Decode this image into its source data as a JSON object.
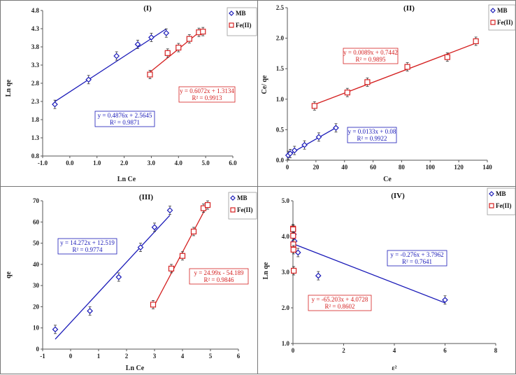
{
  "colors": {
    "mb": "#1a1ab8",
    "fe": "#d42020"
  },
  "chart_data": [
    {
      "type": "scatter",
      "title": "(I)",
      "xlabel": "Ln Ce",
      "ylabel": "Ln qe",
      "xlim": [
        -1,
        6
      ],
      "ylim": [
        0.8,
        4.8
      ],
      "xticks": [
        "-1.0",
        "0.0",
        "1.0",
        "2.0",
        "3.0",
        "4.0",
        "5.0",
        "6.0"
      ],
      "yticks": [
        "0.8",
        "1.3",
        "1.8",
        "2.3",
        "2.8",
        "3.3",
        "3.8",
        "4.3",
        "4.8"
      ],
      "legend": [
        "MB",
        "Fe(II)"
      ],
      "series": [
        {
          "name": "MB",
          "x": [
            -0.55,
            0.69,
            1.72,
            2.5,
            3.0,
            3.55
          ],
          "y": [
            2.22,
            2.9,
            3.55,
            3.87,
            4.06,
            4.18
          ],
          "fit": {
            "slope": 0.4876,
            "intercept": 2.5645,
            "range": [
              -0.55,
              3.55
            ]
          },
          "equation": "y = 0.4876x + 2.5645",
          "r2": "R² = 0.9871"
        },
        {
          "name": "Fe(II)",
          "x": [
            2.95,
            3.6,
            4.0,
            4.4,
            4.75,
            4.9
          ],
          "y": [
            3.04,
            3.63,
            3.78,
            4.02,
            4.2,
            4.22
          ],
          "fit": {
            "slope": 0.6072,
            "intercept": 1.3134,
            "range": [
              2.95,
              4.9
            ]
          },
          "equation": "y = 0.6072x + 1.3134",
          "r2": "R² = 0.9913"
        }
      ]
    },
    {
      "type": "scatter",
      "title": "(II)",
      "xlabel": "Ce",
      "ylabel": "Ce/ qe",
      "xlim": [
        0,
        140
      ],
      "ylim": [
        0,
        2.5
      ],
      "xticks": [
        "0",
        "20",
        "40",
        "60",
        "80",
        "100",
        "120",
        "140"
      ],
      "yticks": [
        "0.0",
        "0.5",
        "1.0",
        "1.5",
        "2.0",
        "2.5"
      ],
      "legend": [
        "MB",
        "Fe(II)"
      ],
      "series": [
        {
          "name": "MB",
          "x": [
            0.6,
            2,
            5,
            12,
            22,
            34
          ],
          "y": [
            0.08,
            0.11,
            0.16,
            0.25,
            0.38,
            0.53
          ],
          "fit": {
            "slope": 0.0133,
            "intercept": 0.08,
            "range": [
              0.6,
              34
            ]
          },
          "equation": "y = 0.0133x + 0.08",
          "r2": "R² = 0.9922"
        },
        {
          "name": "Fe(II)",
          "x": [
            19,
            42,
            56,
            84,
            112,
            132
          ],
          "y": [
            0.89,
            1.11,
            1.28,
            1.53,
            1.69,
            1.95
          ],
          "fit": {
            "slope": 0.0089,
            "intercept": 0.7442,
            "range": [
              19,
              132
            ]
          },
          "equation": "y = 0.0089x + 0.7442",
          "r2": "R² = 0.9895"
        }
      ]
    },
    {
      "type": "scatter",
      "title": "(III)",
      "xlabel": "Ln Ce",
      "ylabel": "qe",
      "xlim": [
        -1,
        6
      ],
      "ylim": [
        0,
        70
      ],
      "xticks": [
        "-1",
        "0",
        "1",
        "2",
        "3",
        "4",
        "5",
        "6"
      ],
      "yticks": [
        "0",
        "10",
        "20",
        "30",
        "40",
        "50",
        "60",
        "70"
      ],
      "legend": [
        "MB",
        "Fe(II)"
      ],
      "series": [
        {
          "name": "MB",
          "x": [
            -0.55,
            0.69,
            1.72,
            2.5,
            3.0,
            3.55
          ],
          "y": [
            9.3,
            18,
            34,
            48,
            57.5,
            65.5
          ],
          "fit": {
            "slope": 14.272,
            "intercept": 12.519,
            "range": [
              -0.55,
              3.55
            ]
          },
          "equation": "y = 14.272x + 12.519",
          "r2": "R² = 0.9774"
        },
        {
          "name": "Fe(II)",
          "x": [
            2.95,
            3.6,
            4.0,
            4.4,
            4.75,
            4.9
          ],
          "y": [
            21,
            38,
            44,
            55.5,
            66.5,
            68
          ],
          "fit": {
            "slope": 24.99,
            "intercept": -54.189,
            "range": [
              2.95,
              4.9
            ]
          },
          "equation": "y = 24.99x - 54.189",
          "r2": "R² = 0.9846"
        }
      ]
    },
    {
      "type": "scatter",
      "title": "(IV)",
      "xlabel": "ε²",
      "ylabel": "Ln qe",
      "xlim": [
        0,
        8
      ],
      "ylim": [
        1,
        5
      ],
      "xticks": [
        "0",
        "2",
        "4",
        "6",
        "8"
      ],
      "yticks": [
        "1.0",
        "2.0",
        "3.0",
        "4.0",
        "5.0"
      ],
      "legend": [
        "MB",
        "Fe(II)"
      ],
      "series": [
        {
          "name": "MB",
          "x": [
            0.01,
            0.03,
            0.06,
            0.2,
            1.0,
            6.0
          ],
          "y": [
            4.18,
            4.06,
            3.87,
            3.55,
            2.9,
            2.22
          ],
          "fit": {
            "slope": -0.276,
            "intercept": 3.7962,
            "range": [
              0,
              6
            ]
          },
          "equation": "y = -0.276x + 3.7962",
          "r2": "R² = 0.7641"
        },
        {
          "name": "Fe(II)",
          "x": [
            0.003,
            0.005,
            0.008,
            0.012,
            0.02,
            0.03
          ],
          "y": [
            4.22,
            4.2,
            4.02,
            3.78,
            3.63,
            3.04
          ],
          "fit": null,
          "equation": "y = -65.203x + 4.0728",
          "r2": "R² = 0.8602"
        }
      ]
    }
  ]
}
